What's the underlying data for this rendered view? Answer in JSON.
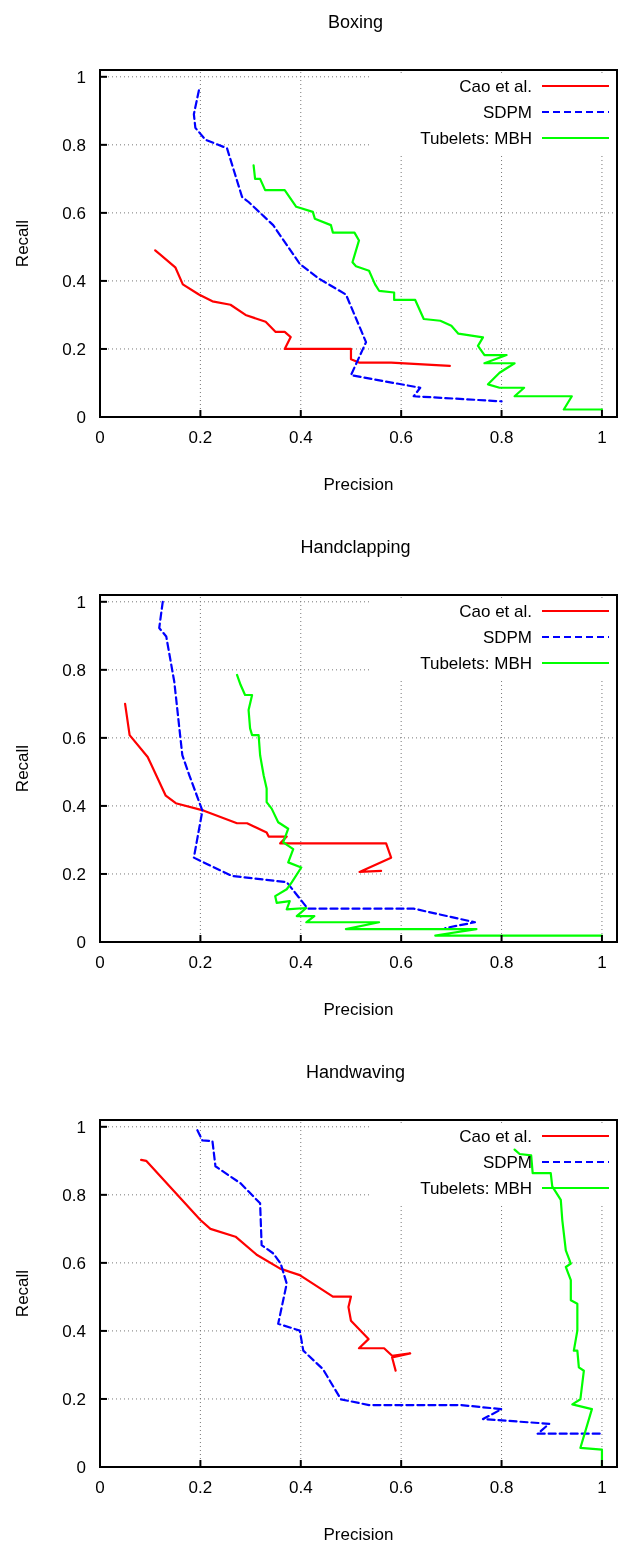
{
  "chart_data": [
    {
      "type": "line",
      "title": "Boxing",
      "xlabel": "Precision",
      "ylabel": "Recall",
      "xlim": [
        0,
        1.03
      ],
      "ylim": [
        0,
        1.02
      ],
      "xticks": [
        0,
        0.2,
        0.4,
        0.6,
        0.8,
        1
      ],
      "yticks": [
        0,
        0.2,
        0.4,
        0.6,
        0.8,
        1
      ],
      "grid": true,
      "legend": "top right",
      "series": [
        {
          "name": "Cao et al.",
          "color": "#ff0000",
          "line_style": "solid",
          "x": [
            0.11,
            0.15,
            0.165,
            0.197,
            0.224,
            0.26,
            0.29,
            0.33,
            0.35,
            0.368,
            0.38,
            0.368,
            0.5,
            0.5,
            0.516,
            0.58,
            0.697
          ],
          "values": [
            0.49,
            0.44,
            0.39,
            0.36,
            0.34,
            0.33,
            0.3,
            0.28,
            0.25,
            0.25,
            0.235,
            0.2,
            0.2,
            0.17,
            0.16,
            0.16,
            0.15
          ]
        },
        {
          "name": "SDPM",
          "color": "#0000ff",
          "line_style": "dashed",
          "x": [
            0.197,
            0.187,
            0.19,
            0.21,
            0.253,
            0.283,
            0.296,
            0.345,
            0.398,
            0.437,
            0.49,
            0.53,
            0.5,
            0.638,
            0.625,
            0.8
          ],
          "values": [
            0.96,
            0.89,
            0.85,
            0.815,
            0.79,
            0.647,
            0.632,
            0.564,
            0.45,
            0.406,
            0.36,
            0.22,
            0.123,
            0.086,
            0.061,
            0.046
          ]
        },
        {
          "name": "Tubelets: MBH",
          "color": "#00ff00",
          "line_style": "solid",
          "x": [
            0.306,
            0.309,
            0.319,
            0.329,
            0.368,
            0.391,
            0.424,
            0.428,
            0.46,
            0.464,
            0.507,
            0.516,
            0.503,
            0.51,
            0.536,
            0.548,
            0.556,
            0.586,
            0.586,
            0.628,
            0.645,
            0.678,
            0.7,
            0.714,
            0.763,
            0.753,
            0.766,
            0.81,
            0.766,
            0.826,
            0.796,
            0.773,
            0.796,
            0.845,
            0.826,
            0.94,
            0.924,
            1
          ],
          "values": [
            0.74,
            0.7,
            0.7,
            0.667,
            0.667,
            0.618,
            0.603,
            0.583,
            0.564,
            0.542,
            0.542,
            0.519,
            0.455,
            0.443,
            0.43,
            0.39,
            0.371,
            0.366,
            0.344,
            0.344,
            0.288,
            0.283,
            0.268,
            0.245,
            0.234,
            0.209,
            0.182,
            0.182,
            0.158,
            0.158,
            0.13,
            0.096,
            0.086,
            0.086,
            0.061,
            0.061,
            0.022,
            0.022
          ]
        }
      ]
    },
    {
      "type": "line",
      "title": "Handclapping",
      "xlabel": "Precision",
      "ylabel": "Recall",
      "xlim": [
        0,
        1.03
      ],
      "ylim": [
        0,
        1.02
      ],
      "xticks": [
        0,
        0.2,
        0.4,
        0.6,
        0.8,
        1
      ],
      "yticks": [
        0,
        0.2,
        0.4,
        0.6,
        0.8,
        1
      ],
      "grid": true,
      "legend": "top right",
      "series": [
        {
          "name": "Cao et al.",
          "color": "#ff0000",
          "line_style": "solid",
          "x": [
            0.05,
            0.059,
            0.095,
            0.131,
            0.151,
            0.207,
            0.273,
            0.293,
            0.332,
            0.336,
            0.372,
            0.359,
            0.57,
            0.58,
            0.517,
            0.56
          ],
          "values": [
            0.7,
            0.608,
            0.544,
            0.43,
            0.408,
            0.386,
            0.349,
            0.349,
            0.322,
            0.31,
            0.31,
            0.29,
            0.29,
            0.248,
            0.206,
            0.209
          ]
        },
        {
          "name": "SDPM",
          "color": "#0000ff",
          "line_style": "dashed",
          "x": [
            0.125,
            0.118,
            0.132,
            0.148,
            0.164,
            0.178,
            0.204,
            0.187,
            0.263,
            0.372,
            0.414,
            0.625,
            0.747,
            0.688
          ],
          "values": [
            1.0,
            0.923,
            0.898,
            0.765,
            0.549,
            0.49,
            0.386,
            0.248,
            0.194,
            0.176,
            0.098,
            0.098,
            0.058,
            0.041
          ]
        },
        {
          "name": "Tubelets: MBH",
          "color": "#00ff00",
          "line_style": "solid",
          "x": [
            0.273,
            0.28,
            0.289,
            0.303,
            0.296,
            0.299,
            0.303,
            0.316,
            0.319,
            0.326,
            0.332,
            0.332,
            0.342,
            0.355,
            0.375,
            0.365,
            0.385,
            0.375,
            0.401,
            0.382,
            0.372,
            0.349,
            0.352,
            0.378,
            0.372,
            0.411,
            0.392,
            0.427,
            0.411,
            0.556,
            0.49,
            0.75,
            0.668,
            1
          ],
          "values": [
            0.785,
            0.756,
            0.726,
            0.726,
            0.682,
            0.628,
            0.608,
            0.608,
            0.549,
            0.49,
            0.451,
            0.411,
            0.392,
            0.352,
            0.333,
            0.293,
            0.273,
            0.234,
            0.219,
            0.175,
            0.155,
            0.135,
            0.115,
            0.12,
            0.096,
            0.1,
            0.076,
            0.076,
            0.058,
            0.058,
            0.038,
            0.038,
            0.019,
            0.019
          ]
        }
      ]
    },
    {
      "type": "line",
      "title": "Handwaving",
      "xlabel": "Precision",
      "ylabel": "Recall",
      "xlim": [
        0,
        1.03
      ],
      "ylim": [
        0,
        1.02
      ],
      "xticks": [
        0,
        0.2,
        0.4,
        0.6,
        0.8,
        1
      ],
      "yticks": [
        0,
        0.2,
        0.4,
        0.6,
        0.8,
        1
      ],
      "grid": true,
      "legend": "top right",
      "series": [
        {
          "name": "Cao et al.",
          "color": "#ff0000",
          "line_style": "solid",
          "x": [
            0.082,
            0.092,
            0.2,
            0.22,
            0.27,
            0.313,
            0.359,
            0.398,
            0.464,
            0.5,
            0.495,
            0.5,
            0.535,
            0.516,
            0.566,
            0.582,
            0.618,
            0.582,
            0.589
          ],
          "values": [
            0.903,
            0.9,
            0.726,
            0.7,
            0.677,
            0.623,
            0.583,
            0.564,
            0.501,
            0.501,
            0.47,
            0.43,
            0.376,
            0.349,
            0.349,
            0.327,
            0.334,
            0.322,
            0.283
          ]
        },
        {
          "name": "SDPM",
          "color": "#0000ff",
          "line_style": "dashed",
          "x": [
            0.194,
            0.204,
            0.224,
            0.23,
            0.28,
            0.319,
            0.322,
            0.345,
            0.36,
            0.372,
            0.355,
            0.398,
            0.405,
            0.444,
            0.48,
            0.536,
            0.72,
            0.8,
            0.763,
            0.895,
            0.872,
            1
          ],
          "values": [
            0.99,
            0.96,
            0.958,
            0.884,
            0.834,
            0.775,
            0.652,
            0.628,
            0.598,
            0.539,
            0.421,
            0.401,
            0.342,
            0.288,
            0.199,
            0.182,
            0.182,
            0.17,
            0.141,
            0.127,
            0.098,
            0.098
          ]
        },
        {
          "name": "Tubelets: MBH",
          "color": "#00ff00",
          "line_style": "solid",
          "x": [
            0.826,
            0.836,
            0.859,
            0.862,
            0.898,
            0.901,
            0.918,
            0.921,
            0.928,
            0.938,
            0.928,
            0.938,
            0.938,
            0.951,
            0.951,
            0.944,
            0.951,
            0.954,
            0.964,
            0.957,
            0.941,
            0.98,
            0.957,
            1,
            1
          ],
          "values": [
            0.933,
            0.92,
            0.916,
            0.864,
            0.864,
            0.825,
            0.785,
            0.726,
            0.637,
            0.598,
            0.588,
            0.549,
            0.49,
            0.48,
            0.401,
            0.342,
            0.342,
            0.293,
            0.283,
            0.199,
            0.184,
            0.17,
            0.056,
            0.051,
            0
          ]
        }
      ]
    }
  ]
}
